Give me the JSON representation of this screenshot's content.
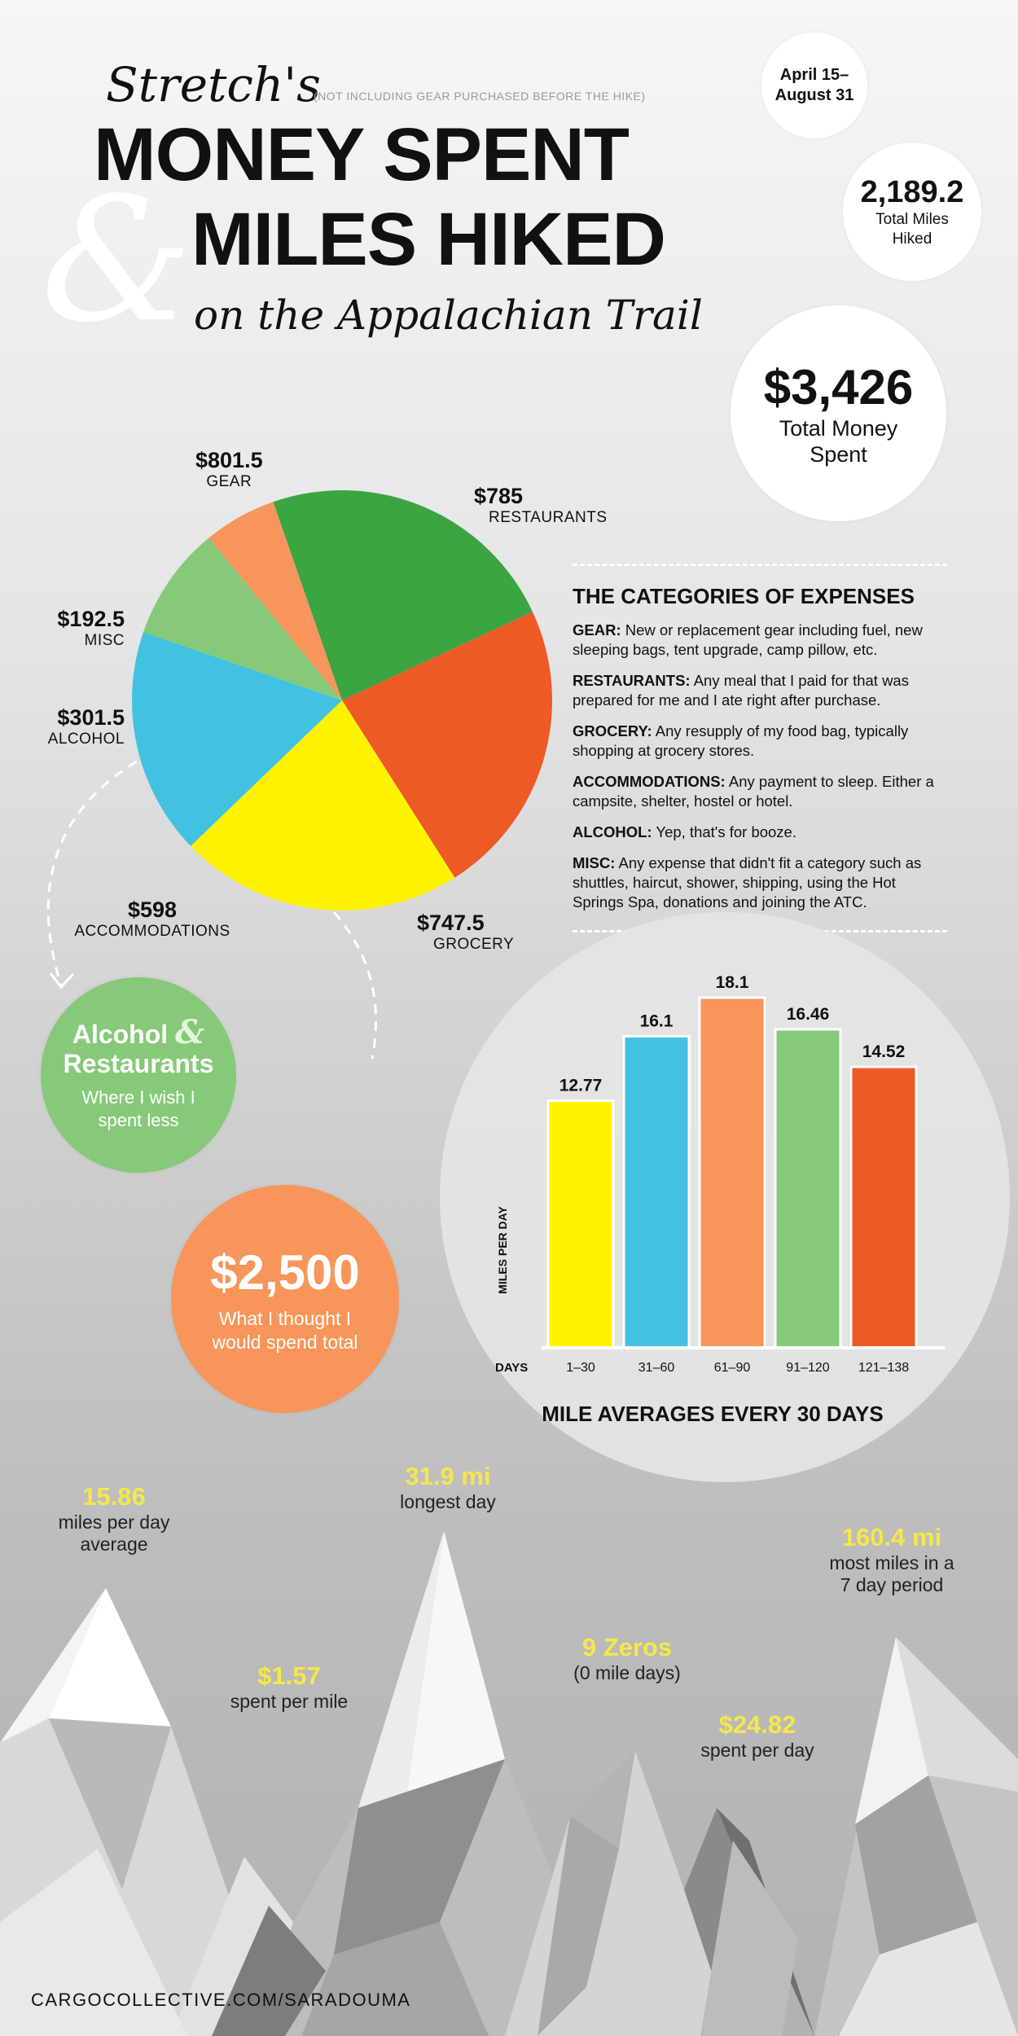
{
  "title": {
    "owner": "Stretch's",
    "note": "(NOT INCLUDING GEAR PURCHASED BEFORE THE HIKE)",
    "line1": "MONEY SPENT",
    "ampersand": "&",
    "line2": "MILES HIKED",
    "subtitle": "on the Appalachian Trail"
  },
  "dates": "April 15– August 31",
  "total_miles": {
    "value": "2,189.2",
    "label": "Total Miles Hiked"
  },
  "total_money": {
    "value": "$3,426",
    "label": "Total Money Spent"
  },
  "colors": {
    "gear": "#3aa541",
    "restaurants": "#ed5a26",
    "grocery": "#fff200",
    "accommodations": "#41c2e0",
    "alcohol": "#86c978",
    "misc": "#f7955a"
  },
  "pie_labels": {
    "gear": {
      "value": "$801.5",
      "name": "GEAR"
    },
    "restaurants": {
      "value": "$785",
      "name": "RESTAURANTS"
    },
    "grocery": {
      "value": "$747.5",
      "name": "GROCERY"
    },
    "accommodations": {
      "value": "$598",
      "name": "ACCOMMODATIONS"
    },
    "alcohol": {
      "value": "$301.5",
      "name": "ALCOHOL"
    },
    "misc": {
      "value": "$192.5",
      "name": "MISC"
    }
  },
  "categories": {
    "heading": "THE CATEGORIES OF EXPENSES",
    "items": [
      {
        "term": "GEAR:",
        "desc": " New or replacement gear including fuel, new sleeping bags, tent upgrade, camp pillow, etc."
      },
      {
        "term": "RESTAURANTS:",
        "desc": " Any meal that I paid for that was prepared for me and I ate right after purchase."
      },
      {
        "term": "GROCERY:",
        "desc": " Any resupply of my food bag, typically shopping at grocery stores."
      },
      {
        "term": "ACCOMMODATIONS:",
        "desc": " Any payment to sleep. Either a campsite, shelter, hostel or hotel."
      },
      {
        "term": "ALCOHOL:",
        "desc": " Yep, that's for booze."
      },
      {
        "term": "MISC:",
        "desc": " Any expense that didn't fit a category such as shuttles, haircut, shower, shipping, using the Hot Springs Spa, donations and joining the ATC."
      }
    ]
  },
  "wish": {
    "title_a": "Alcohol",
    "amp": "&",
    "title_b": "Restaurants",
    "text": "Where I wish I spent less"
  },
  "expected": {
    "value": "$2,500",
    "text": "What I thought I would spend total"
  },
  "bar_chart": {
    "title": "MILE AVERAGES EVERY 30 DAYS",
    "ylabel": "MILES PER DAY",
    "xlabel": "DAYS"
  },
  "stats": {
    "avg": {
      "value": "15.86",
      "text1": "miles per day",
      "text2": "average"
    },
    "longest": {
      "value": "31.9 mi",
      "text1": "longest day"
    },
    "most7": {
      "value": "160.4 mi",
      "text1": "most miles in a",
      "text2": "7 day period"
    },
    "per_mile": {
      "value": "$1.57",
      "text1": "spent per mile"
    },
    "zeros": {
      "value": "9 Zeros",
      "text1": "(0 mile days)"
    },
    "per_day": {
      "value": "$24.82",
      "text1": "spent per day"
    }
  },
  "footer": "CARGOCOLLECTIVE.COM/SARADOUMA",
  "chart_data": [
    {
      "type": "pie",
      "title": "",
      "categories": [
        "GEAR",
        "RESTAURANTS",
        "GROCERY",
        "ACCOMMODATIONS",
        "ALCOHOL",
        "MISC"
      ],
      "values": [
        801.5,
        785,
        747.5,
        598,
        301.5,
        192.5
      ],
      "unit": "$"
    },
    {
      "type": "bar",
      "title": "MILE AVERAGES EVERY 30 DAYS",
      "xlabel": "DAYS",
      "ylabel": "MILES PER DAY",
      "categories": [
        "1–30",
        "31–60",
        "61–90",
        "91–120",
        "121–138"
      ],
      "values": [
        12.77,
        16.1,
        18.1,
        16.46,
        14.52
      ],
      "value_labels": [
        "12.77",
        "16.1",
        "18.1",
        "16.46",
        "14.52"
      ],
      "colors": [
        "#fff200",
        "#41c2e0",
        "#f7955a",
        "#86c978",
        "#ed5a26"
      ],
      "ylim": [
        0,
        20
      ]
    }
  ]
}
